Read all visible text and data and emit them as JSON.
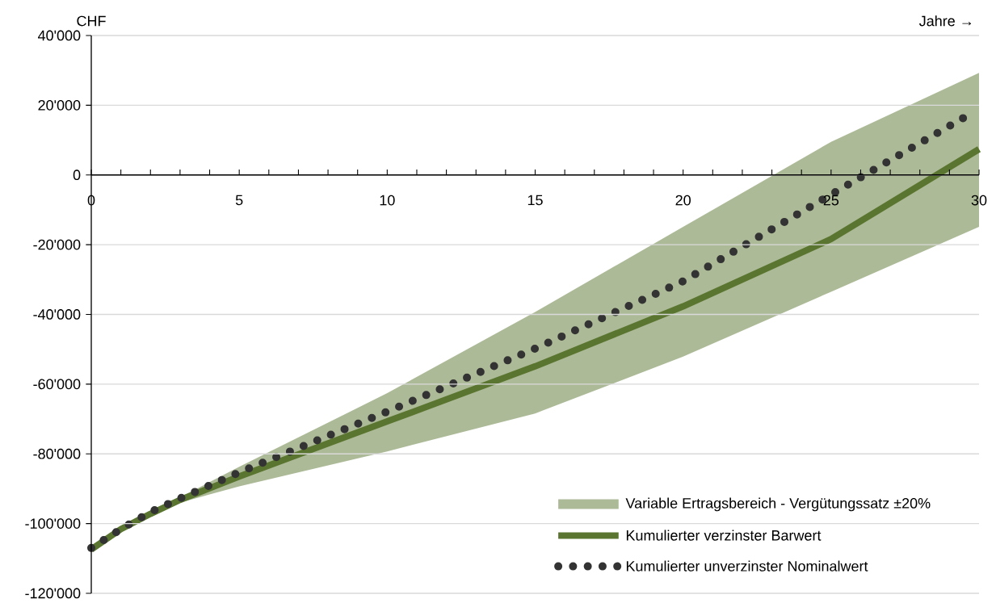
{
  "chart_data": {
    "type": "line",
    "xlabel": "Jahre →",
    "ylabel": "CHF",
    "annotations": [
      "Variable Ertragsbereich - Vergütungssatz ±20%"
    ],
    "xlim": [
      0,
      30
    ],
    "ylim": [
      -120000,
      40000
    ],
    "xticks": [
      0,
      {
        "value": 1,
        "label": null
      },
      {
        "value": 2,
        "label": null
      },
      {
        "value": 3,
        "label": null
      },
      {
        "value": 4,
        "label": null
      },
      5,
      {
        "value": 6,
        "label": null
      },
      {
        "value": 7,
        "label": null
      },
      {
        "value": 8,
        "label": null
      },
      {
        "value": 9,
        "label": null
      },
      10,
      {
        "value": 11,
        "label": null
      },
      {
        "value": 12,
        "label": null
      },
      {
        "value": 13,
        "label": null
      },
      {
        "value": 14,
        "label": null
      },
      15,
      {
        "value": 16,
        "label": null
      },
      {
        "value": 17,
        "label": null
      },
      {
        "value": 18,
        "label": null
      },
      {
        "value": 19,
        "label": null
      },
      20,
      {
        "value": 21,
        "label": null
      },
      {
        "value": 22,
        "label": null
      },
      {
        "value": 23,
        "label": null
      },
      {
        "value": 24,
        "label": null
      },
      25,
      {
        "value": 26,
        "label": null
      },
      {
        "value": 27,
        "label": null
      },
      {
        "value": 28,
        "label": null
      },
      {
        "value": 29,
        "label": null
      },
      30
    ],
    "yticks": [
      {
        "value": -120000,
        "label": "-120'000"
      },
      {
        "value": -100000,
        "label": "-100'000"
      },
      {
        "value": -80000,
        "label": "-80'000"
      },
      {
        "value": -60000,
        "label": "-60'000"
      },
      {
        "value": -40000,
        "label": "-40'000"
      },
      {
        "value": -20000,
        "label": "-20'000"
      },
      {
        "value": 0,
        "label": "0"
      },
      {
        "value": 20000,
        "label": "20'000"
      },
      {
        "value": 40000,
        "label": "40'000"
      }
    ],
    "grid": "y",
    "legend": "bottom right",
    "series": [
      {
        "name": "Kumulierter verzinster Barwert",
        "color": "#5a7530",
        "line_style": "solid",
        "x": [
          0,
          1,
          2,
          3,
          5,
          10,
          15,
          20,
          25,
          30
        ],
        "values": [
          -107400,
          -101600,
          -97200,
          -93200,
          -86500,
          -70700,
          -54900,
          -37700,
          -18400,
          7400
        ],
        "lower": [
          -107800,
          -102200,
          -97800,
          -94000,
          -89300,
          -79300,
          -68400,
          -52100,
          -33500,
          -14900
        ],
        "upper": [
          -107000,
          -101000,
          -96500,
          -92500,
          -83700,
          -62600,
          -39300,
          -14900,
          9500,
          29300
        ]
      },
      {
        "name": "Kumulierter unverzinster Nominalwert",
        "color": "#333333",
        "line_style": "dotted",
        "x": [
          0,
          1,
          2,
          3,
          5,
          10,
          15,
          20,
          25,
          29.5
        ],
        "values": [
          -107000,
          -101600,
          -96700,
          -92800,
          -85300,
          -67900,
          -49800,
          -30500,
          -5600,
          16500
        ]
      }
    ]
  }
}
